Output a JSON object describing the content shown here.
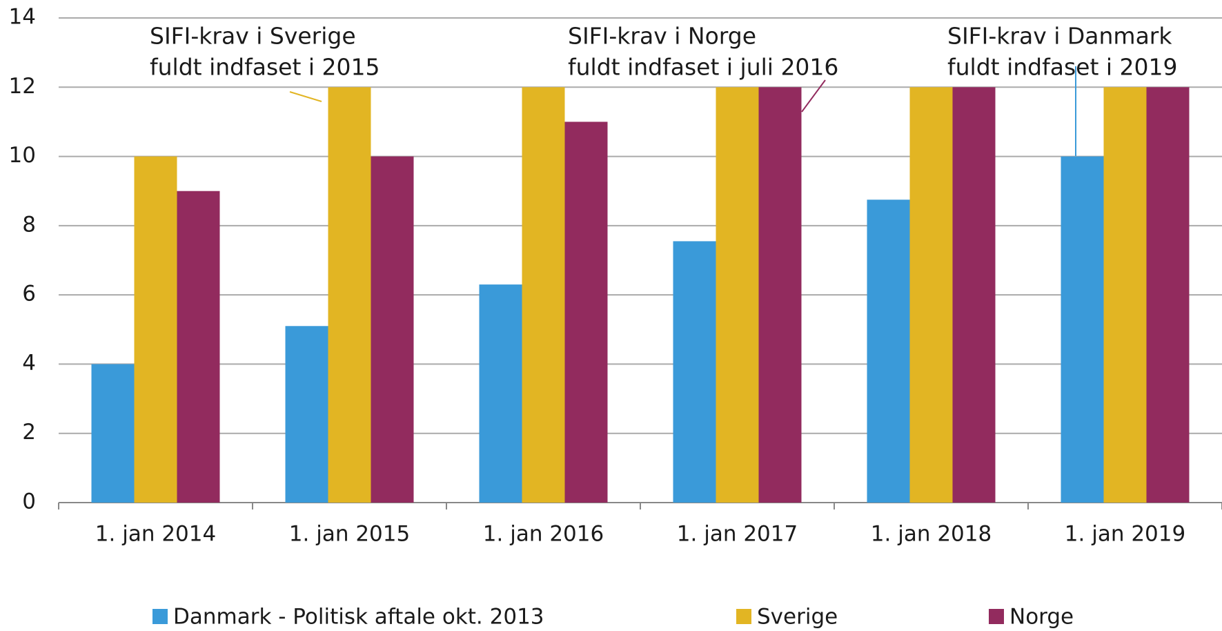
{
  "chart_data": {
    "type": "bar",
    "categories": [
      "1. jan 2014",
      "1. jan 2015",
      "1. jan 2016",
      "1. jan 2017",
      "1. jan 2018",
      "1. jan 2019"
    ],
    "series": [
      {
        "name": "Danmark - Politisk aftale okt. 2013",
        "color": "#3a9ad9",
        "values": [
          4,
          5.1,
          6.3,
          7.55,
          8.75,
          10
        ]
      },
      {
        "name": "Sverige",
        "color": "#e2b523",
        "values": [
          10,
          12,
          12,
          12,
          12,
          12
        ]
      },
      {
        "name": "Norge",
        "color": "#922b5e",
        "values": [
          9,
          10,
          11,
          12,
          12,
          12
        ]
      }
    ],
    "ylim": [
      0,
      14
    ],
    "yticks": [
      0,
      2,
      4,
      6,
      8,
      10,
      12,
      14
    ],
    "grid": true,
    "legend": "bottom",
    "annotations": [
      {
        "lines": [
          "SIFI-krav i Sverige",
          "fuldt indfaset i 2015"
        ],
        "color": "#e2b523"
      },
      {
        "lines": [
          "SIFI-krav i Norge",
          "fuldt indfaset i juli 2016"
        ],
        "color": "#922b5e"
      },
      {
        "lines": [
          "SIFI-krav i Danmark",
          "fuldt indfaset i 2019"
        ],
        "color": "#3a9ad9"
      }
    ]
  }
}
